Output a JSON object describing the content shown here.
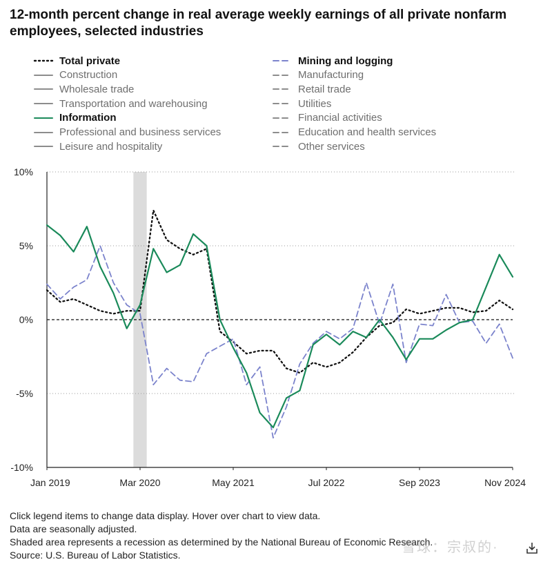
{
  "title": "12-month percent change in real average weekly earnings of all private nonfarm employees, selected industries",
  "legend": {
    "left": [
      {
        "label": "Total private",
        "style": "dotted",
        "color": "#111111",
        "active": true
      },
      {
        "label": "Construction",
        "style": "solid",
        "color": "#8c8c8c",
        "active": false
      },
      {
        "label": "Wholesale trade",
        "style": "solid",
        "color": "#8c8c8c",
        "active": false
      },
      {
        "label": "Transportation and warehousing",
        "style": "solid",
        "color": "#8c8c8c",
        "active": false
      },
      {
        "label": "Information",
        "style": "solid",
        "color": "#1a8a5a",
        "active": true
      },
      {
        "label": "Professional and business services",
        "style": "solid",
        "color": "#8c8c8c",
        "active": false
      },
      {
        "label": "Leisure and hospitality",
        "style": "solid",
        "color": "#8c8c8c",
        "active": false
      }
    ],
    "right": [
      {
        "label": "Mining and logging",
        "style": "dashed",
        "color": "#7b83cc",
        "active": true
      },
      {
        "label": "Manufacturing",
        "style": "dashed",
        "color": "#8c8c8c",
        "active": false
      },
      {
        "label": "Retail trade",
        "style": "dashed",
        "color": "#8c8c8c",
        "active": false
      },
      {
        "label": "Utilities",
        "style": "dashed",
        "color": "#8c8c8c",
        "active": false
      },
      {
        "label": "Financial activities",
        "style": "dashed",
        "color": "#8c8c8c",
        "active": false
      },
      {
        "label": "Education and health services",
        "style": "dashed",
        "color": "#8c8c8c",
        "active": false
      },
      {
        "label": "Other services",
        "style": "dashed",
        "color": "#8c8c8c",
        "active": false
      }
    ]
  },
  "chart_data": {
    "type": "line",
    "x": [
      "2019-01",
      "2019-03",
      "2019-05",
      "2019-07",
      "2019-09",
      "2019-11",
      "2020-01",
      "2020-03",
      "2020-05",
      "2020-07",
      "2020-09",
      "2020-11",
      "2021-01",
      "2021-03",
      "2021-05",
      "2021-07",
      "2021-09",
      "2021-11",
      "2022-01",
      "2022-03",
      "2022-05",
      "2022-07",
      "2022-09",
      "2022-11",
      "2023-01",
      "2023-03",
      "2023-05",
      "2023-07",
      "2023-09",
      "2023-11",
      "2024-01",
      "2024-03",
      "2024-05",
      "2024-07",
      "2024-09",
      "2024-11"
    ],
    "series": [
      {
        "name": "Total private",
        "color": "#111111",
        "style": "dotted",
        "values": [
          2.0,
          1.2,
          1.4,
          1.0,
          0.6,
          0.4,
          0.6,
          0.6,
          7.4,
          5.4,
          4.8,
          4.4,
          4.8,
          -0.8,
          -1.5,
          -2.3,
          -2.1,
          -2.1,
          -3.3,
          -3.6,
          -2.9,
          -3.2,
          -2.9,
          -2.2,
          -1.2,
          -0.4,
          -0.2,
          0.7,
          0.4,
          0.6,
          0.8,
          0.8,
          0.5,
          0.6,
          1.3,
          0.7
        ]
      },
      {
        "name": "Mining and logging",
        "color": "#7b83cc",
        "style": "dashed",
        "values": [
          2.4,
          1.4,
          2.2,
          2.7,
          5.0,
          2.5,
          1.0,
          0.4,
          -4.4,
          -3.3,
          -4.1,
          -4.2,
          -2.3,
          -1.8,
          -1.3,
          -4.4,
          -3.2,
          -8.0,
          -5.9,
          -3.0,
          -1.6,
          -0.8,
          -1.3,
          -0.6,
          2.5,
          -0.3,
          2.4,
          -2.9,
          -0.3,
          -0.4,
          1.7,
          -0.2,
          -0.1,
          -1.6,
          -0.3,
          -2.6
        ]
      },
      {
        "name": "Information",
        "color": "#1a8a5a",
        "style": "solid",
        "values": [
          6.4,
          5.7,
          4.6,
          6.3,
          3.6,
          1.8,
          -0.6,
          1.0,
          4.8,
          3.2,
          3.7,
          5.8,
          5.0,
          0.0,
          -1.9,
          -3.6,
          -6.3,
          -7.3,
          -5.3,
          -4.8,
          -1.7,
          -1.0,
          -1.7,
          -0.8,
          -1.2,
          0.0,
          -1.2,
          -2.7,
          -1.3,
          -1.3,
          -0.7,
          -0.2,
          0.0,
          2.2,
          4.4,
          2.9
        ]
      }
    ],
    "ylim": [
      -10,
      10
    ],
    "yticks": [
      10,
      5,
      0,
      -5,
      -10
    ],
    "ytick_labels": [
      "10%",
      "5%",
      "0%",
      "-5%",
      "-10%"
    ],
    "xtick_labels": [
      {
        "label": "Jan 2019",
        "date": "2019-01"
      },
      {
        "label": "Mar 2020",
        "date": "2020-03"
      },
      {
        "label": "May 2021",
        "date": "2021-05"
      },
      {
        "label": "Jul 2022",
        "date": "2022-07"
      },
      {
        "label": "Sep 2023",
        "date": "2023-09"
      },
      {
        "label": "Nov 2024",
        "date": "2024-11"
      }
    ],
    "recession": {
      "start": "2020-02",
      "end": "2020-04"
    },
    "grid": true,
    "gridline_style": "dotted",
    "zero_line": "dashed"
  },
  "notes": [
    "Click legend items to change data display. Hover over chart to view data.",
    "Data are seasonally adjusted.",
    "Shaded area represents a recession as determined by the National Bureau of Economic Research.",
    "Source: U.S. Bureau of Labor Statistics."
  ],
  "watermark": "雪球：宗叔的·"
}
